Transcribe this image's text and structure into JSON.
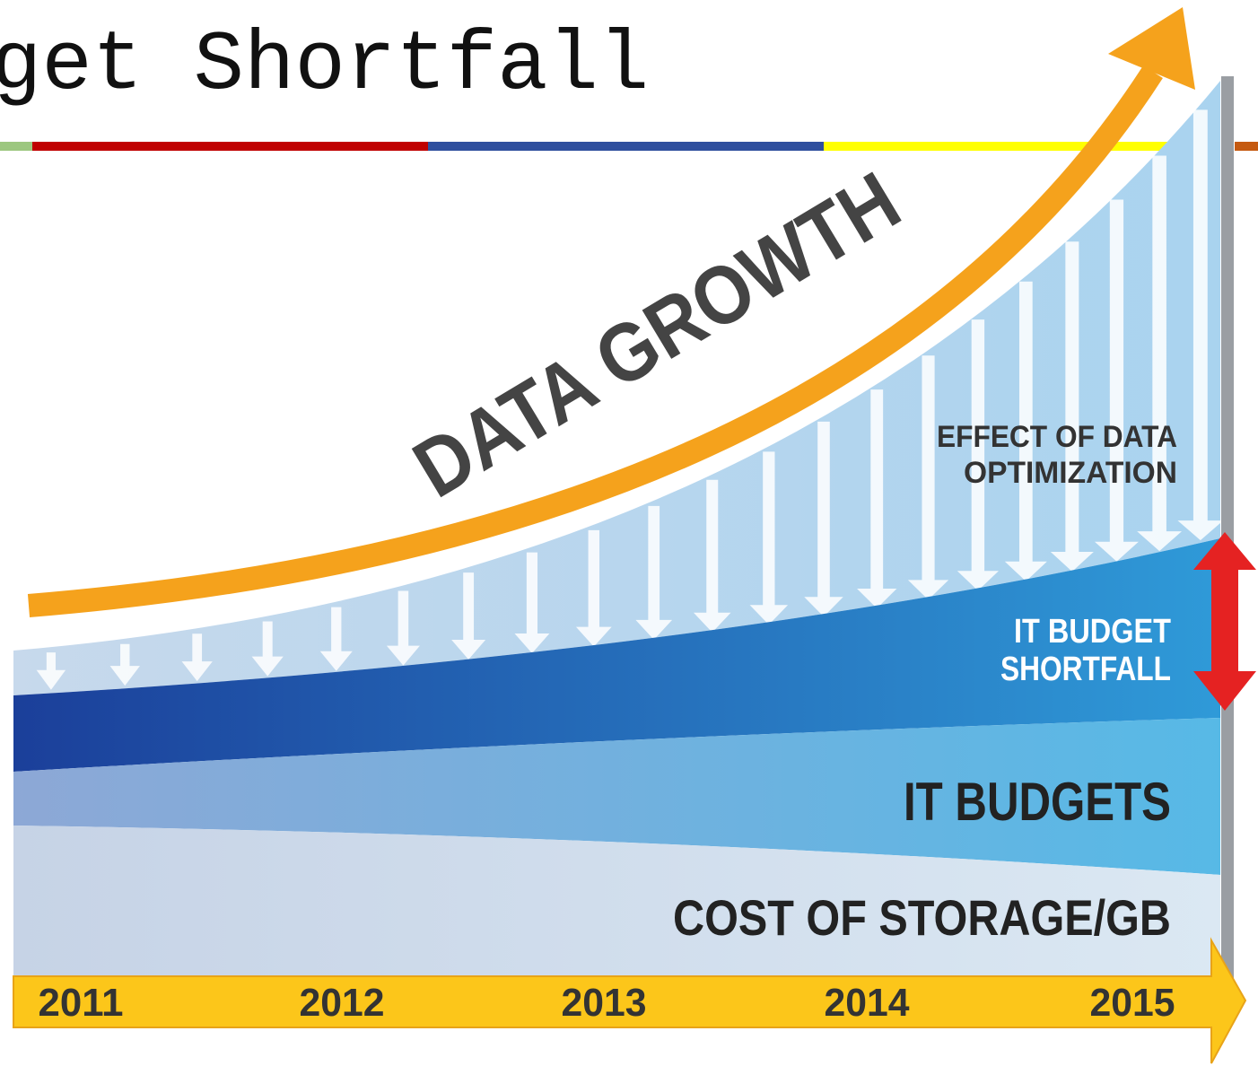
{
  "header": {
    "title": "get Shortfall"
  },
  "diagram": {
    "growth_label": "DATA GROWTH",
    "optimization_label": [
      "EFFECT OF DATA",
      "OPTIMIZATION"
    ],
    "shortfall_label": [
      "IT BUDGET",
      "SHORTFALL"
    ],
    "budgets_label": "IT BUDGETS",
    "storage_label": "COST OF STORAGE/GB",
    "timeline": [
      "2011",
      "2012",
      "2013",
      "2014",
      "2015"
    ]
  }
}
